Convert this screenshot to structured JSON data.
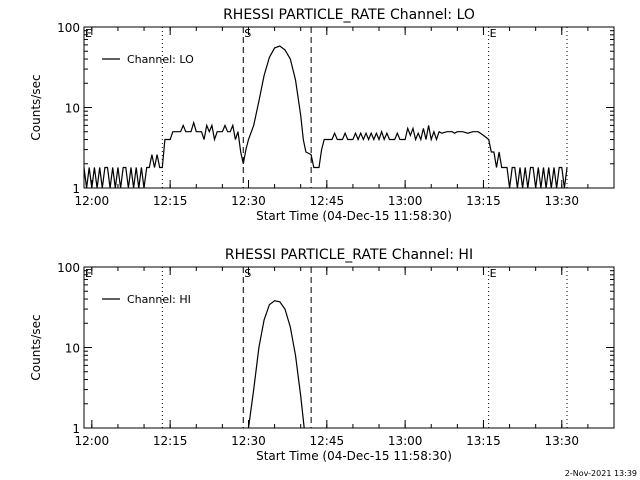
{
  "footer_timestamp": "2-Nov-2021 13:39",
  "chart_data": [
    {
      "type": "line",
      "title": "RHESSI PARTICLE_RATE Channel: LO",
      "xlabel": "Start Time (04-Dec-15 11:58:30)",
      "ylabel": "Counts/sec",
      "yscale": "log",
      "ylim": [
        1,
        100
      ],
      "xlim": [
        "11:58:30",
        "13:40:00"
      ],
      "x_ticks": [
        "12:00",
        "12:15",
        "12:30",
        "12:45",
        "13:00",
        "13:15",
        "13:30"
      ],
      "y_ticks": [
        "1",
        "10",
        "100"
      ],
      "legend": {
        "placement": "top-left",
        "entries": [
          "Channel: LO"
        ]
      },
      "markers": [
        {
          "label": "E",
          "time": "11:58:30",
          "style": "dotted"
        },
        {
          "label": "",
          "time": "12:13:30",
          "style": "dotted"
        },
        {
          "label": "S",
          "time": "12:29:00",
          "style": "dashed"
        },
        {
          "label": "",
          "time": "12:42:00",
          "style": "dashed"
        },
        {
          "label": "E",
          "time": "13:16:00",
          "style": "dotted"
        },
        {
          "label": "",
          "time": "13:31:00",
          "style": "dotted"
        }
      ],
      "series": [
        {
          "name": "Channel: LO",
          "points": [
            [
              "11:58:30",
              1.8
            ],
            [
              "11:59:00",
              1
            ],
            [
              "11:59:30",
              1.8
            ],
            [
              "12:00:00",
              1
            ],
            [
              "12:00:30",
              1.8
            ],
            [
              "12:01:00",
              1
            ],
            [
              "12:01:30",
              1.8
            ],
            [
              "12:02:00",
              1
            ],
            [
              "12:02:30",
              1.8
            ],
            [
              "12:03:00",
              1.8
            ],
            [
              "12:03:30",
              1
            ],
            [
              "12:04:00",
              1.8
            ],
            [
              "12:04:30",
              1
            ],
            [
              "12:05:00",
              1.8
            ],
            [
              "12:05:30",
              1
            ],
            [
              "12:06:00",
              1.8
            ],
            [
              "12:06:30",
              1.8
            ],
            [
              "12:07:00",
              1
            ],
            [
              "12:07:30",
              1.8
            ],
            [
              "12:08:00",
              1
            ],
            [
              "12:08:30",
              1.8
            ],
            [
              "12:09:00",
              1
            ],
            [
              "12:09:30",
              1.8
            ],
            [
              "12:10:00",
              1
            ],
            [
              "12:10:30",
              1.8
            ],
            [
              "12:11:00",
              1.8
            ],
            [
              "12:11:30",
              2.6
            ],
            [
              "12:12:00",
              1.8
            ],
            [
              "12:12:30",
              2.6
            ],
            [
              "12:13:00",
              1.8
            ],
            [
              "12:13:30",
              1.8
            ],
            [
              "12:14:00",
              4
            ],
            [
              "12:15:00",
              4
            ],
            [
              "12:15:30",
              5
            ],
            [
              "12:17:00",
              5
            ],
            [
              "12:17:30",
              6
            ],
            [
              "12:18:00",
              5
            ],
            [
              "12:19:00",
              5
            ],
            [
              "12:19:30",
              6.5
            ],
            [
              "12:20:00",
              5
            ],
            [
              "12:21:00",
              5
            ],
            [
              "12:21:30",
              4
            ],
            [
              "12:22:00",
              6
            ],
            [
              "12:22:30",
              5
            ],
            [
              "12:23:00",
              6
            ],
            [
              "12:23:30",
              4
            ],
            [
              "12:24:00",
              5
            ],
            [
              "12:25:00",
              5
            ],
            [
              "12:25:30",
              6
            ],
            [
              "12:26:00",
              5
            ],
            [
              "12:26:30",
              5
            ],
            [
              "12:27:00",
              6
            ],
            [
              "12:27:30",
              4
            ],
            [
              "12:28:00",
              5
            ],
            [
              "12:28:30",
              2.8
            ],
            [
              "12:29:00",
              2
            ],
            [
              "12:29:30",
              3
            ],
            [
              "12:30:00",
              4
            ],
            [
              "12:31:00",
              6
            ],
            [
              "12:32:00",
              12
            ],
            [
              "12:33:00",
              25
            ],
            [
              "12:34:00",
              42
            ],
            [
              "12:35:00",
              55
            ],
            [
              "12:36:00",
              58
            ],
            [
              "12:37:00",
              52
            ],
            [
              "12:38:00",
              40
            ],
            [
              "12:39:00",
              22
            ],
            [
              "12:40:00",
              8
            ],
            [
              "12:40:30",
              4
            ],
            [
              "12:41:00",
              2.8
            ],
            [
              "12:42:00",
              2.6
            ],
            [
              "12:42:30",
              1.8
            ],
            [
              "12:43:30",
              1.8
            ],
            [
              "12:44:00",
              3
            ],
            [
              "12:44:30",
              4
            ],
            [
              "12:46:00",
              4
            ],
            [
              "12:46:30",
              4.8
            ],
            [
              "12:47:00",
              4
            ],
            [
              "12:48:00",
              4
            ],
            [
              "12:48:30",
              4.8
            ],
            [
              "12:49:00",
              4
            ],
            [
              "12:50:00",
              4
            ],
            [
              "12:50:30",
              4.8
            ],
            [
              "12:51:00",
              4
            ],
            [
              "12:51:30",
              4.8
            ],
            [
              "12:52:00",
              4
            ],
            [
              "12:52:30",
              4.8
            ],
            [
              "12:53:00",
              4
            ],
            [
              "12:53:30",
              4.8
            ],
            [
              "12:54:00",
              4
            ],
            [
              "12:54:30",
              4.8
            ],
            [
              "12:55:00",
              4
            ],
            [
              "12:55:30",
              5
            ],
            [
              "12:56:00",
              4
            ],
            [
              "12:56:30",
              4.8
            ],
            [
              "12:57:00",
              4
            ],
            [
              "12:58:00",
              4
            ],
            [
              "12:58:30",
              4.8
            ],
            [
              "12:59:00",
              4
            ],
            [
              "13:00:00",
              4
            ],
            [
              "13:00:30",
              5.5
            ],
            [
              "13:01:00",
              4.5
            ],
            [
              "13:01:30",
              5.5
            ],
            [
              "13:02:00",
              4
            ],
            [
              "13:02:30",
              4.8
            ],
            [
              "13:03:00",
              4
            ],
            [
              "13:03:30",
              5.5
            ],
            [
              "13:04:00",
              4
            ],
            [
              "13:04:30",
              6
            ],
            [
              "13:05:00",
              4
            ],
            [
              "13:05:30",
              5
            ],
            [
              "13:06:00",
              4
            ],
            [
              "13:06:30",
              5
            ],
            [
              "13:07:00",
              4.8
            ],
            [
              "13:08:00",
              5
            ],
            [
              "13:09:00",
              5
            ],
            [
              "13:09:30",
              4.8
            ],
            [
              "13:10:00",
              5
            ],
            [
              "13:11:00",
              5
            ],
            [
              "13:12:00",
              4.8
            ],
            [
              "13:13:00",
              5
            ],
            [
              "13:14:00",
              5
            ],
            [
              "13:15:00",
              4.5
            ],
            [
              "13:16:00",
              4
            ],
            [
              "13:16:30",
              2.8
            ],
            [
              "13:17:00",
              2.8
            ],
            [
              "13:17:30",
              1.8
            ],
            [
              "13:18:00",
              2.8
            ],
            [
              "13:18:30",
              1.8
            ],
            [
              "13:19:00",
              1.8
            ],
            [
              "13:19:30",
              1.8
            ],
            [
              "13:20:00",
              1
            ],
            [
              "13:20:30",
              1.8
            ],
            [
              "13:21:00",
              1.8
            ],
            [
              "13:21:30",
              1
            ],
            [
              "13:22:00",
              1.8
            ],
            [
              "13:22:30",
              1
            ],
            [
              "13:23:00",
              1.8
            ],
            [
              "13:23:30",
              1
            ],
            [
              "13:24:00",
              1.8
            ],
            [
              "13:24:30",
              1.8
            ],
            [
              "13:25:00",
              1
            ],
            [
              "13:25:30",
              1.8
            ],
            [
              "13:26:00",
              1
            ],
            [
              "13:26:30",
              1.8
            ],
            [
              "13:27:00",
              1
            ],
            [
              "13:27:30",
              1.8
            ],
            [
              "13:28:00",
              1
            ],
            [
              "13:28:30",
              1.8
            ],
            [
              "13:29:00",
              1
            ],
            [
              "13:29:30",
              1.8
            ],
            [
              "13:30:00",
              1.8
            ],
            [
              "13:30:30",
              1
            ],
            [
              "13:31:00",
              1.8
            ]
          ]
        }
      ]
    },
    {
      "type": "line",
      "title": "RHESSI PARTICLE_RATE Channel: HI",
      "xlabel": "Start Time (04-Dec-15 11:58:30)",
      "ylabel": "Counts/sec",
      "yscale": "log",
      "ylim": [
        1,
        100
      ],
      "xlim": [
        "11:58:30",
        "13:40:00"
      ],
      "x_ticks": [
        "12:00",
        "12:15",
        "12:30",
        "12:45",
        "13:00",
        "13:15",
        "13:30"
      ],
      "y_ticks": [
        "1",
        "10",
        "100"
      ],
      "legend": {
        "placement": "top-left",
        "entries": [
          "Channel: HI"
        ]
      },
      "markers": [
        {
          "label": "E",
          "time": "11:58:30",
          "style": "dotted"
        },
        {
          "label": "",
          "time": "12:13:30",
          "style": "dotted"
        },
        {
          "label": "S",
          "time": "12:29:00",
          "style": "dashed"
        },
        {
          "label": "",
          "time": "12:42:00",
          "style": "dashed"
        },
        {
          "label": "E",
          "time": "13:16:00",
          "style": "dotted"
        },
        {
          "label": "",
          "time": "13:31:00",
          "style": "dotted"
        }
      ],
      "series": [
        {
          "name": "Channel: HI",
          "points": [
            [
              "12:30:00",
              1
            ],
            [
              "12:31:00",
              3
            ],
            [
              "12:32:00",
              10
            ],
            [
              "12:33:00",
              22
            ],
            [
              "12:34:00",
              34
            ],
            [
              "12:35:00",
              38
            ],
            [
              "12:36:00",
              37
            ],
            [
              "12:37:00",
              30
            ],
            [
              "12:38:00",
              18
            ],
            [
              "12:39:00",
              8
            ],
            [
              "12:40:00",
              2.5
            ],
            [
              "12:40:40",
              1
            ]
          ]
        }
      ]
    }
  ]
}
